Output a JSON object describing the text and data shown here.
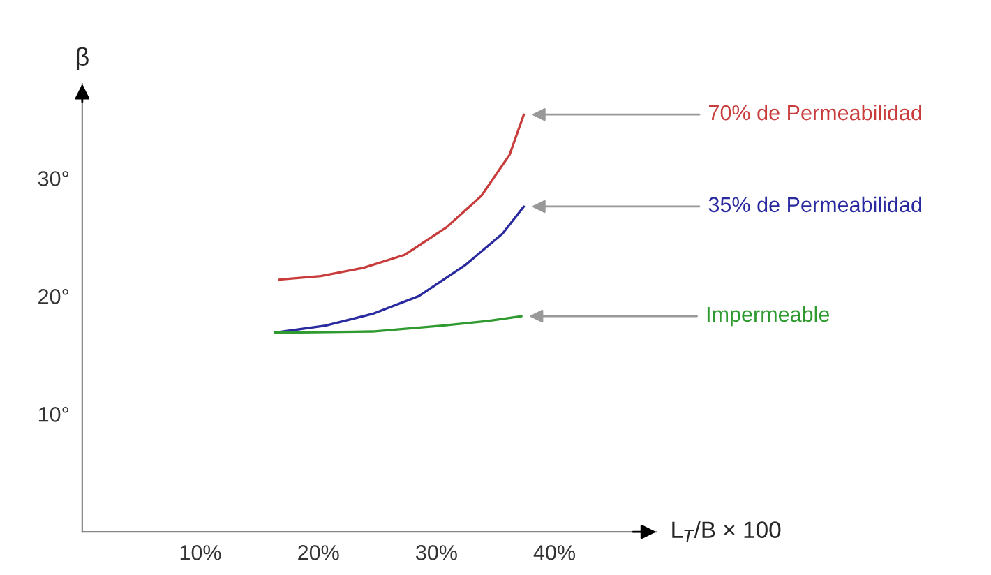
{
  "chart_data": {
    "type": "line",
    "ylabel": "β",
    "xlabel": "L$_{T}$/B × 100",
    "xlim": [
      0,
      48.6
    ],
    "ylim": [
      0,
      38
    ],
    "xticks": [
      {
        "value": 10,
        "label": "10%"
      },
      {
        "value": 20,
        "label": "20%"
      },
      {
        "value": 30,
        "label": "30%"
      },
      {
        "value": 40,
        "label": "40%"
      }
    ],
    "yticks": [
      {
        "value": 10,
        "label": "10°"
      },
      {
        "value": 20,
        "label": "20°"
      },
      {
        "value": 30,
        "label": "30°"
      }
    ],
    "series": [
      {
        "name": "70% de Permeabilidad",
        "color": "#c83c3c",
        "x": [
          16.7,
          20.2,
          23.8,
          27.3,
          30.8,
          33.8,
          36.2,
          37.4
        ],
        "values": [
          21.4,
          21.7,
          22.4,
          23.5,
          25.8,
          28.5,
          32.0,
          35.4
        ]
      },
      {
        "name": "35% de Permeabilidad",
        "color": "#2a2aa0",
        "x": [
          16.3,
          20.6,
          24.6,
          28.5,
          32.4,
          35.6,
          37.4
        ],
        "values": [
          16.9,
          17.5,
          18.5,
          20.0,
          22.6,
          25.3,
          27.6
        ]
      },
      {
        "name": "Impermeable",
        "color": "#2f9a2f",
        "x": [
          16.3,
          24.6,
          30.5,
          34.4,
          37.2
        ],
        "values": [
          16.9,
          17.0,
          17.5,
          17.9,
          18.3
        ]
      }
    ],
    "grid": false,
    "legend": false,
    "marker": "none",
    "line_style": "solid"
  }
}
